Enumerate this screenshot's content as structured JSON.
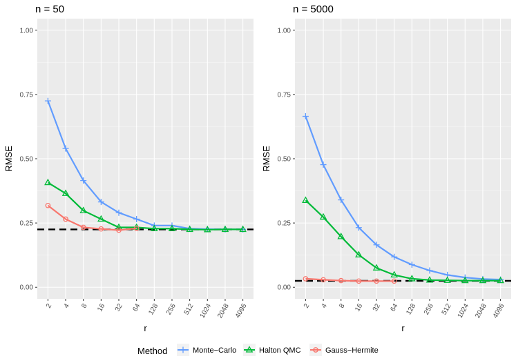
{
  "chart_data": {
    "type": "line",
    "legend": {
      "title": "Method",
      "position": "bottom",
      "entries": [
        {
          "name": "Monte−Carlo",
          "color": "#619CFF",
          "marker": "plus"
        },
        {
          "name": "Halton QMC",
          "color": "#00BA38",
          "marker": "triangle"
        },
        {
          "name": "Gauss−Hermite",
          "color": "#F8766D",
          "marker": "circle"
        }
      ]
    },
    "panels": [
      {
        "title": "n = 50",
        "xlabel": "r",
        "ylabel": "RMSE",
        "ylim": [
          0,
          1
        ],
        "yticks": [
          "0.00",
          "0.25",
          "0.50",
          "0.75",
          "1.00"
        ],
        "ytick_values": [
          0,
          0.25,
          0.5,
          0.75,
          1.0
        ],
        "categories": [
          "2",
          "4",
          "8",
          "16",
          "32",
          "64",
          "128",
          "256",
          "512",
          "1024",
          "2048",
          "4096"
        ],
        "reference_line": 0.225,
        "series": [
          {
            "name": "Monte−Carlo",
            "values": [
              0.725,
              0.54,
              0.415,
              0.332,
              0.29,
              0.265,
              0.24,
              0.24,
              0.228,
              0.226,
              0.225,
              0.225
            ]
          },
          {
            "name": "Halton QMC",
            "values": [
              0.407,
              0.365,
              0.298,
              0.265,
              0.233,
              0.233,
              0.228,
              0.228,
              0.225,
              0.224,
              0.225,
              0.225
            ]
          },
          {
            "name": "Gauss−Hermite",
            "values": [
              0.318,
              0.265,
              0.233,
              0.227,
              0.222,
              0.229,
              null,
              null,
              null,
              null,
              null,
              null
            ]
          }
        ]
      },
      {
        "title": "n = 5000",
        "xlabel": "r",
        "ylabel": "RMSE",
        "ylim": [
          0,
          1
        ],
        "yticks": [
          "0.00",
          "0.25",
          "0.50",
          "0.75",
          "1.00"
        ],
        "ytick_values": [
          0,
          0.25,
          0.5,
          0.75,
          1.0
        ],
        "categories": [
          "2",
          "4",
          "8",
          "16",
          "32",
          "64",
          "128",
          "256",
          "512",
          "1024",
          "2048",
          "4096"
        ],
        "reference_line": 0.025,
        "series": [
          {
            "name": "Monte−Carlo",
            "values": [
              0.665,
              0.477,
              0.34,
              0.232,
              0.165,
              0.118,
              0.088,
              0.065,
              0.048,
              0.038,
              0.032,
              0.03
            ]
          },
          {
            "name": "Halton QMC",
            "values": [
              0.338,
              0.273,
              0.197,
              0.126,
              0.075,
              0.048,
              0.033,
              0.028,
              0.027,
              0.026,
              0.026,
              0.026
            ]
          },
          {
            "name": "Gauss−Hermite",
            "values": [
              0.033,
              0.029,
              0.026,
              0.024,
              0.024,
              0.024,
              null,
              null,
              null,
              null,
              null,
              null
            ]
          }
        ]
      }
    ]
  }
}
